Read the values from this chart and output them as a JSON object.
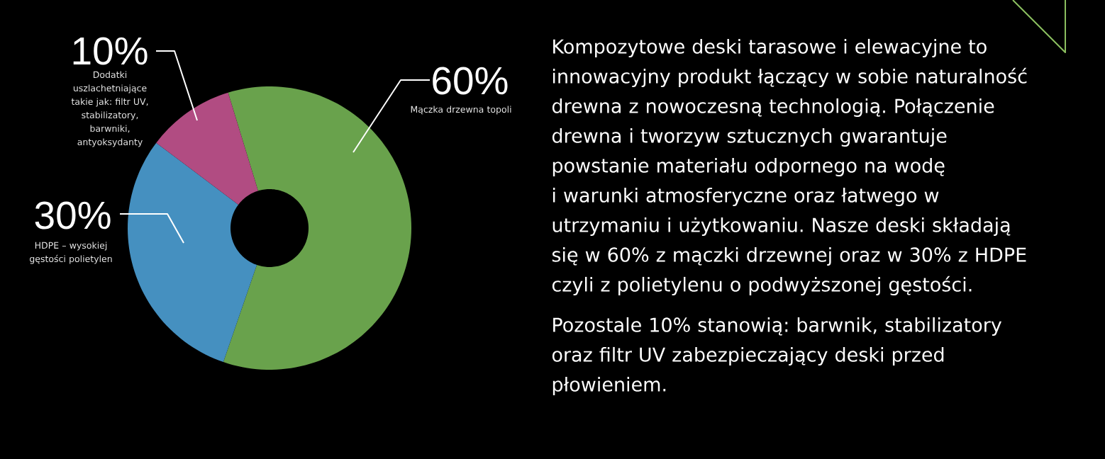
{
  "chart_data": {
    "type": "donut",
    "categories": [
      "Mączka drzewna topoli",
      "HDPE – wysokiej gęstości polietylen",
      "Dodatki uszlachetniające takie jak: filtr UV, stabilizatory, barwniki, antyoksydanty"
    ],
    "values": [
      60,
      30,
      10
    ],
    "colors": [
      "#69a24c",
      "#4590c0",
      "#b14c82"
    ],
    "value_labels": [
      "60%",
      "30%",
      "10%"
    ],
    "annotations": [
      "Kompozytowe deski tarasowe i elewacyjne to innowacyjny produkt łączący w sobie naturalność drewna z nowoczesną technologią. Połączenie drewna i tworzyw sztucznych gwarantuje powstanie materiału odpornego na wodę i warunki atmosferyczne oraz łatwego w utrzymaniu i użytkowaniu. Nasze deski składają się w 60% z mączki drzewnej oraz w 30% z HDPE czyli z polietylenu o podwyższonej gęstości.",
      "Pozostale 10% stanowią: barwnik, stabilizatory oraz filtr UV zabezpieczający deski przed płowieniem."
    ]
  }
}
